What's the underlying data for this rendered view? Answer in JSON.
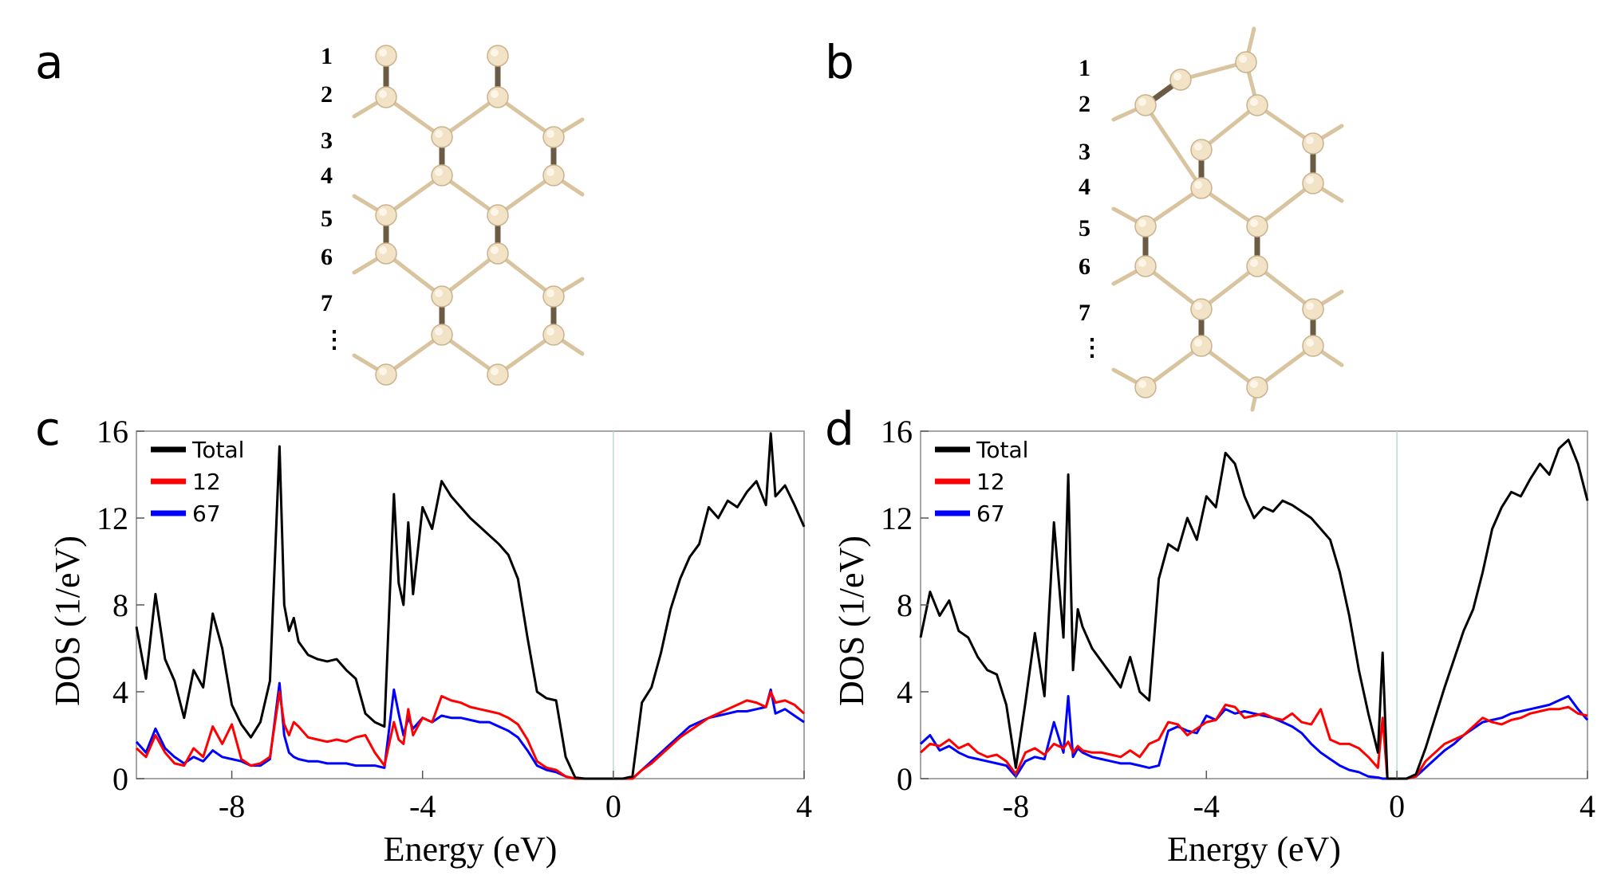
{
  "panels": {
    "a": "a",
    "b": "b",
    "c": "c",
    "d": "d"
  },
  "layer_labels": [
    "1",
    "2",
    "3",
    "4",
    "5",
    "6",
    "7",
    "⋮"
  ],
  "atom_color": "#f2e2c6",
  "chart_data": [
    {
      "panel": "c",
      "type": "line",
      "xlabel": "Energy (eV)",
      "ylabel": "DOS (1/eV)",
      "xlim": [
        -10,
        4
      ],
      "ylim": [
        0,
        16
      ],
      "xticks": [
        -8,
        -4,
        0,
        4
      ],
      "yticks": [
        0,
        4,
        8,
        12,
        16
      ],
      "legend_placement": "top-left",
      "fermi_line_x": 0,
      "series": [
        {
          "name": "Total",
          "color": "#000000",
          "x": [
            -10,
            -9.8,
            -9.6,
            -9.4,
            -9.2,
            -9.0,
            -8.8,
            -8.6,
            -8.4,
            -8.2,
            -8.0,
            -7.8,
            -7.6,
            -7.4,
            -7.2,
            -7.0,
            -6.9,
            -6.8,
            -6.7,
            -6.6,
            -6.4,
            -6.2,
            -6.0,
            -5.8,
            -5.6,
            -5.4,
            -5.2,
            -5.0,
            -4.8,
            -4.6,
            -4.5,
            -4.4,
            -4.3,
            -4.2,
            -4.0,
            -3.8,
            -3.6,
            -3.4,
            -3.2,
            -3.0,
            -2.8,
            -2.6,
            -2.4,
            -2.2,
            -2.0,
            -1.8,
            -1.6,
            -1.4,
            -1.2,
            -1.0,
            -0.8,
            -0.6,
            -0.4,
            -0.2,
            0.0,
            0.2,
            0.4,
            0.6,
            0.8,
            1.0,
            1.2,
            1.4,
            1.6,
            1.8,
            2.0,
            2.2,
            2.4,
            2.6,
            2.8,
            3.0,
            3.2,
            3.3,
            3.4,
            3.6,
            3.8,
            4.0
          ],
          "y": [
            7.0,
            4.6,
            8.5,
            5.5,
            4.5,
            2.8,
            5.0,
            4.2,
            7.6,
            6.0,
            3.4,
            2.5,
            1.9,
            2.6,
            4.5,
            15.3,
            8.0,
            6.8,
            7.4,
            6.3,
            5.7,
            5.5,
            5.4,
            5.5,
            5.0,
            4.6,
            3.0,
            2.6,
            2.4,
            13.1,
            9.0,
            8.0,
            11.8,
            8.5,
            12.5,
            11.5,
            13.7,
            13.0,
            12.5,
            12.0,
            11.6,
            11.2,
            10.8,
            10.3,
            9.2,
            6.5,
            4.0,
            3.7,
            3.6,
            1.0,
            0.05,
            0.0,
            0.0,
            0.0,
            0.0,
            0.0,
            0.1,
            3.5,
            4.2,
            5.8,
            7.8,
            9.2,
            10.2,
            10.8,
            12.5,
            12.0,
            12.8,
            12.5,
            13.2,
            13.7,
            12.6,
            15.9,
            13.0,
            13.5,
            12.6,
            11.6
          ]
        },
        {
          "name": "12",
          "color": "#ff0000",
          "x": [
            -10,
            -9.8,
            -9.6,
            -9.4,
            -9.2,
            -9.0,
            -8.8,
            -8.6,
            -8.4,
            -8.2,
            -8.0,
            -7.8,
            -7.6,
            -7.4,
            -7.2,
            -7.0,
            -6.9,
            -6.8,
            -6.7,
            -6.6,
            -6.4,
            -6.2,
            -6.0,
            -5.8,
            -5.6,
            -5.4,
            -5.2,
            -5.0,
            -4.8,
            -4.6,
            -4.5,
            -4.4,
            -4.3,
            -4.2,
            -4.0,
            -3.8,
            -3.6,
            -3.4,
            -3.2,
            -3.0,
            -2.8,
            -2.6,
            -2.4,
            -2.2,
            -2.0,
            -1.8,
            -1.6,
            -1.4,
            -1.2,
            -1.0,
            -0.8,
            -0.6,
            -0.4,
            -0.2,
            0.0,
            0.2,
            0.4,
            0.6,
            0.8,
            1.0,
            1.2,
            1.4,
            1.6,
            1.8,
            2.0,
            2.2,
            2.4,
            2.6,
            2.8,
            3.0,
            3.2,
            3.3,
            3.4,
            3.6,
            3.8,
            4.0
          ],
          "y": [
            1.4,
            1.0,
            2.0,
            1.2,
            0.7,
            0.6,
            1.4,
            1.0,
            2.4,
            1.6,
            2.5,
            0.9,
            0.6,
            0.7,
            1.0,
            4.0,
            2.5,
            2.0,
            2.6,
            2.4,
            1.9,
            1.8,
            1.7,
            1.8,
            1.7,
            1.9,
            2.0,
            1.2,
            0.6,
            2.6,
            1.8,
            1.6,
            3.2,
            2.0,
            2.8,
            2.6,
            3.8,
            3.6,
            3.5,
            3.3,
            3.2,
            3.1,
            3.0,
            2.8,
            2.5,
            1.8,
            0.8,
            0.5,
            0.4,
            0.1,
            0.0,
            0.0,
            0.0,
            0.0,
            0.0,
            0.0,
            0.0,
            0.4,
            0.7,
            1.1,
            1.5,
            1.9,
            2.2,
            2.5,
            2.8,
            3.0,
            3.2,
            3.4,
            3.6,
            3.5,
            3.3,
            4.0,
            3.5,
            3.6,
            3.4,
            3.0
          ]
        },
        {
          "name": "67",
          "color": "#0000ff",
          "x": [
            -10,
            -9.8,
            -9.6,
            -9.4,
            -9.2,
            -9.0,
            -8.8,
            -8.6,
            -8.4,
            -8.2,
            -8.0,
            -7.8,
            -7.6,
            -7.4,
            -7.2,
            -7.0,
            -6.9,
            -6.8,
            -6.7,
            -6.6,
            -6.4,
            -6.2,
            -6.0,
            -5.8,
            -5.6,
            -5.4,
            -5.2,
            -5.0,
            -4.8,
            -4.6,
            -4.5,
            -4.4,
            -4.3,
            -4.2,
            -4.0,
            -3.8,
            -3.6,
            -3.4,
            -3.2,
            -3.0,
            -2.8,
            -2.6,
            -2.4,
            -2.2,
            -2.0,
            -1.8,
            -1.6,
            -1.4,
            -1.2,
            -1.0,
            -0.8,
            -0.6,
            -0.4,
            -0.2,
            0.0,
            0.2,
            0.4,
            0.6,
            0.8,
            1.0,
            1.2,
            1.4,
            1.6,
            1.8,
            2.0,
            2.2,
            2.4,
            2.6,
            2.8,
            3.0,
            3.2,
            3.3,
            3.4,
            3.6,
            3.8,
            4.0
          ],
          "y": [
            1.7,
            1.2,
            2.3,
            1.4,
            1.0,
            0.7,
            1.0,
            0.8,
            1.3,
            1.0,
            0.9,
            0.8,
            0.6,
            0.6,
            0.9,
            4.4,
            2.0,
            1.2,
            1.0,
            0.9,
            0.8,
            0.8,
            0.7,
            0.7,
            0.7,
            0.6,
            0.6,
            0.6,
            0.5,
            4.1,
            3.0,
            2.0,
            2.8,
            2.3,
            2.8,
            2.6,
            2.9,
            2.8,
            2.8,
            2.7,
            2.6,
            2.6,
            2.4,
            2.2,
            1.9,
            1.3,
            0.6,
            0.4,
            0.3,
            0.1,
            0.0,
            0.0,
            0.0,
            0.0,
            0.0,
            0.0,
            0.0,
            0.4,
            0.8,
            1.2,
            1.6,
            2.0,
            2.4,
            2.6,
            2.8,
            2.9,
            3.0,
            3.1,
            3.1,
            3.2,
            3.3,
            4.1,
            3.0,
            3.2,
            2.9,
            2.6
          ]
        }
      ]
    },
    {
      "panel": "d",
      "type": "line",
      "xlabel": "Energy (eV)",
      "ylabel": "DOS (1/eV)",
      "xlim": [
        -10,
        4
      ],
      "ylim": [
        0,
        16
      ],
      "xticks": [
        -8,
        -4,
        0,
        4
      ],
      "yticks": [
        0,
        4,
        8,
        12,
        16
      ],
      "legend_placement": "top-left",
      "fermi_line_x": 0,
      "series": [
        {
          "name": "Total",
          "color": "#000000",
          "x": [
            -10,
            -9.8,
            -9.6,
            -9.4,
            -9.2,
            -9.0,
            -8.8,
            -8.6,
            -8.4,
            -8.2,
            -8.0,
            -7.8,
            -7.6,
            -7.4,
            -7.2,
            -7.0,
            -6.9,
            -6.8,
            -6.7,
            -6.6,
            -6.4,
            -6.2,
            -6.0,
            -5.8,
            -5.6,
            -5.4,
            -5.2,
            -5.0,
            -4.8,
            -4.6,
            -4.4,
            -4.2,
            -4.0,
            -3.8,
            -3.6,
            -3.4,
            -3.2,
            -3.0,
            -2.8,
            -2.6,
            -2.4,
            -2.2,
            -2.0,
            -1.8,
            -1.6,
            -1.4,
            -1.2,
            -1.0,
            -0.8,
            -0.6,
            -0.4,
            -0.3,
            -0.2,
            0.0,
            0.2,
            0.4,
            0.6,
            0.8,
            1.0,
            1.2,
            1.4,
            1.6,
            1.8,
            2.0,
            2.2,
            2.4,
            2.6,
            2.8,
            3.0,
            3.2,
            3.4,
            3.6,
            3.8,
            4.0
          ],
          "y": [
            6.5,
            8.6,
            7.5,
            8.2,
            6.8,
            6.5,
            5.6,
            5.0,
            4.8,
            3.4,
            0.5,
            3.5,
            6.7,
            3.8,
            11.8,
            6.5,
            14.0,
            5.0,
            7.8,
            7.0,
            6.0,
            5.4,
            4.8,
            4.2,
            5.6,
            4.0,
            3.6,
            9.2,
            10.8,
            10.5,
            12.0,
            11.0,
            13.0,
            12.5,
            15.0,
            14.5,
            13.0,
            12.0,
            12.5,
            12.3,
            12.8,
            12.6,
            12.3,
            12.0,
            11.5,
            11.0,
            9.5,
            7.5,
            5.0,
            3.0,
            1.2,
            5.8,
            0.0,
            0.0,
            0.0,
            0.2,
            1.4,
            2.8,
            4.2,
            5.5,
            6.8,
            7.8,
            9.5,
            11.5,
            12.5,
            13.2,
            13.0,
            13.8,
            14.5,
            14.0,
            15.2,
            15.6,
            14.5,
            12.8
          ]
        },
        {
          "name": "12",
          "color": "#ff0000",
          "x": [
            -10,
            -9.8,
            -9.6,
            -9.4,
            -9.2,
            -9.0,
            -8.8,
            -8.6,
            -8.4,
            -8.2,
            -8.0,
            -7.8,
            -7.6,
            -7.4,
            -7.2,
            -7.0,
            -6.9,
            -6.8,
            -6.7,
            -6.6,
            -6.4,
            -6.2,
            -6.0,
            -5.8,
            -5.6,
            -5.4,
            -5.2,
            -5.0,
            -4.8,
            -4.6,
            -4.4,
            -4.2,
            -4.0,
            -3.8,
            -3.6,
            -3.4,
            -3.2,
            -3.0,
            -2.8,
            -2.6,
            -2.4,
            -2.2,
            -2.0,
            -1.8,
            -1.6,
            -1.4,
            -1.2,
            -1.0,
            -0.8,
            -0.6,
            -0.4,
            -0.3,
            -0.2,
            0.0,
            0.2,
            0.4,
            0.6,
            0.8,
            1.0,
            1.2,
            1.4,
            1.6,
            1.8,
            2.0,
            2.2,
            2.4,
            2.6,
            2.8,
            3.0,
            3.2,
            3.4,
            3.6,
            3.8,
            4.0
          ],
          "y": [
            1.2,
            1.6,
            1.5,
            1.8,
            1.4,
            1.6,
            1.2,
            1.0,
            1.1,
            0.8,
            0.2,
            1.2,
            1.4,
            1.1,
            1.6,
            1.4,
            1.7,
            1.2,
            1.5,
            1.3,
            1.2,
            1.2,
            1.1,
            1.0,
            1.3,
            1.0,
            1.6,
            1.8,
            2.6,
            2.5,
            2.0,
            2.3,
            2.6,
            2.7,
            3.4,
            3.3,
            2.8,
            2.9,
            3.0,
            2.8,
            2.7,
            3.0,
            2.6,
            2.5,
            3.2,
            1.8,
            1.6,
            1.6,
            1.4,
            1.0,
            0.5,
            2.8,
            0.0,
            0.0,
            0.0,
            0.1,
            0.8,
            1.2,
            1.6,
            1.8,
            2.0,
            2.4,
            2.8,
            2.6,
            2.5,
            2.7,
            2.8,
            3.0,
            3.1,
            3.2,
            3.2,
            3.3,
            3.0,
            2.9
          ]
        },
        {
          "name": "67",
          "color": "#0000ff",
          "x": [
            -10,
            -9.8,
            -9.6,
            -9.4,
            -9.2,
            -9.0,
            -8.8,
            -8.6,
            -8.4,
            -8.2,
            -8.0,
            -7.8,
            -7.6,
            -7.4,
            -7.2,
            -7.0,
            -6.9,
            -6.8,
            -6.7,
            -6.6,
            -6.4,
            -6.2,
            -6.0,
            -5.8,
            -5.6,
            -5.4,
            -5.2,
            -5.0,
            -4.8,
            -4.6,
            -4.4,
            -4.2,
            -4.0,
            -3.8,
            -3.6,
            -3.4,
            -3.2,
            -3.0,
            -2.8,
            -2.6,
            -2.4,
            -2.2,
            -2.0,
            -1.8,
            -1.6,
            -1.4,
            -1.2,
            -1.0,
            -0.8,
            -0.6,
            -0.4,
            -0.3,
            -0.2,
            0.0,
            0.2,
            0.4,
            0.6,
            0.8,
            1.0,
            1.2,
            1.4,
            1.6,
            1.8,
            2.0,
            2.2,
            2.4,
            2.6,
            2.8,
            3.0,
            3.2,
            3.4,
            3.6,
            3.8,
            4.0
          ],
          "y": [
            1.6,
            2.0,
            1.3,
            1.5,
            1.2,
            1.0,
            0.9,
            0.8,
            0.7,
            0.6,
            0.1,
            0.8,
            1.0,
            0.9,
            2.6,
            1.2,
            3.8,
            1.0,
            1.4,
            1.2,
            1.0,
            0.9,
            0.8,
            0.7,
            0.7,
            0.6,
            0.5,
            0.6,
            2.2,
            2.4,
            2.2,
            2.1,
            2.9,
            2.7,
            3.2,
            3.0,
            3.1,
            3.0,
            2.9,
            2.8,
            2.6,
            2.4,
            2.1,
            1.6,
            1.2,
            0.9,
            0.6,
            0.4,
            0.3,
            0.1,
            0.05,
            0.0,
            0.0,
            0.0,
            0.0,
            0.1,
            0.5,
            0.9,
            1.3,
            1.6,
            2.0,
            2.3,
            2.6,
            2.7,
            2.8,
            3.0,
            3.1,
            3.2,
            3.3,
            3.4,
            3.6,
            3.8,
            3.2,
            2.7
          ]
        }
      ]
    }
  ]
}
